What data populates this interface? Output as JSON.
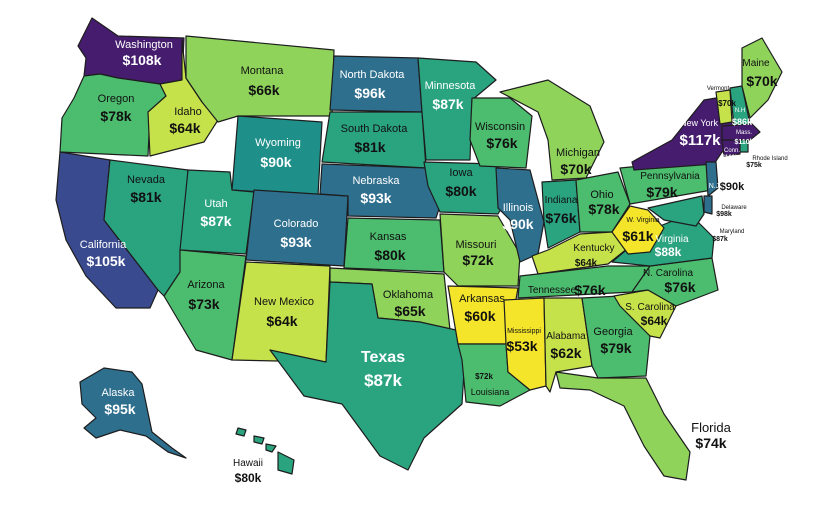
{
  "map": {
    "palette": {
      "yellow": "#f4e52a",
      "lime": "#c6e24a",
      "light_green": "#8fd35b",
      "green": "#4cbc6e",
      "teal_green": "#2aa37f",
      "teal": "#1f8f8a",
      "steel_blue": "#2f6f8e",
      "indigo": "#3a4a8f",
      "purple": "#461d6e",
      "coast": "#1d1d1d"
    },
    "states": {
      "WA": {
        "name": "Washington",
        "value": "$108k"
      },
      "OR": {
        "name": "Oregon",
        "value": "$78k"
      },
      "CA": {
        "name": "California",
        "value": "$105k"
      },
      "NV": {
        "name": "Nevada",
        "value": "$81k"
      },
      "ID": {
        "name": "Idaho",
        "value": "$64k"
      },
      "MT": {
        "name": "Montana",
        "value": "$66k"
      },
      "WY": {
        "name": "Wyoming",
        "value": "$90k"
      },
      "UT": {
        "name": "Utah",
        "value": "$87k"
      },
      "AZ": {
        "name": "Arizona",
        "value": "$73k"
      },
      "CO": {
        "name": "Colorado",
        "value": "$93k"
      },
      "NM": {
        "name": "New Mexico",
        "value": "$64k"
      },
      "ND": {
        "name": "North Dakota",
        "value": "$96k"
      },
      "SD": {
        "name": "South Dakota",
        "value": "$81k"
      },
      "NE": {
        "name": "Nebraska",
        "value": "$93k"
      },
      "KS": {
        "name": "Kansas",
        "value": "$80k"
      },
      "OK": {
        "name": "Oklahoma",
        "value": "$65k"
      },
      "TX": {
        "name": "Texas",
        "value": "$87k"
      },
      "MN": {
        "name": "Minnesota",
        "value": "$87k"
      },
      "IA": {
        "name": "Iowa",
        "value": "$80k"
      },
      "MO": {
        "name": "Missouri",
        "value": "$72k"
      },
      "AR": {
        "name": "Arkansas",
        "value": "$60k"
      },
      "LA": {
        "name": "Louisiana",
        "value": "$72k"
      },
      "WI": {
        "name": "Wisconsin",
        "value": "$76k"
      },
      "IL": {
        "name": "Illinois",
        "value": "$90k"
      },
      "MI": {
        "name": "Michigan",
        "value": "$70k"
      },
      "IN": {
        "name": "Indiana",
        "value": "$76k"
      },
      "OH": {
        "name": "Ohio",
        "value": "$78k"
      },
      "KY": {
        "name": "Kentucky",
        "value": "$64k"
      },
      "TN": {
        "name": "Tennessee",
        "value": "$76k"
      },
      "MS": {
        "name": "Mississippi",
        "value": "$53k"
      },
      "AL": {
        "name": "Alabama",
        "value": "$62k"
      },
      "GA": {
        "name": "Georgia",
        "value": "$79k"
      },
      "FL": {
        "name": "Florida",
        "value": "$74k"
      },
      "SC": {
        "name": "S. Carolina",
        "value": "$64k"
      },
      "NC": {
        "name": "N. Carolina",
        "value": "$76k"
      },
      "VA": {
        "name": "Virginia",
        "value": "$88k"
      },
      "WV": {
        "name": "W. Virginia",
        "value": "$61k"
      },
      "PA": {
        "name": "Pennsylvania",
        "value": "$79k"
      },
      "NY": {
        "name": "New York",
        "value": "$117k"
      },
      "VT": {
        "name": "Vermont",
        "value": "$70k"
      },
      "NH": {
        "name": "N.H",
        "value": "$86k"
      },
      "ME": {
        "name": "Maine",
        "value": "$70k"
      },
      "MA": {
        "name": "Mass.",
        "value": "$110k"
      },
      "CT": {
        "name": "Conn.",
        "value": "$100k"
      },
      "RI": {
        "name": "Rhode Island",
        "value": "$75k"
      },
      "NJ": {
        "name": "N.J",
        "value": "$90k"
      },
      "DE": {
        "name": "Delaware",
        "value": "$98k"
      },
      "MD": {
        "name": "Maryland",
        "value": "$87k"
      },
      "AK": {
        "name": "Alaska",
        "value": "$95k"
      },
      "HI": {
        "name": "Hawaii",
        "value": "$80k"
      }
    }
  }
}
